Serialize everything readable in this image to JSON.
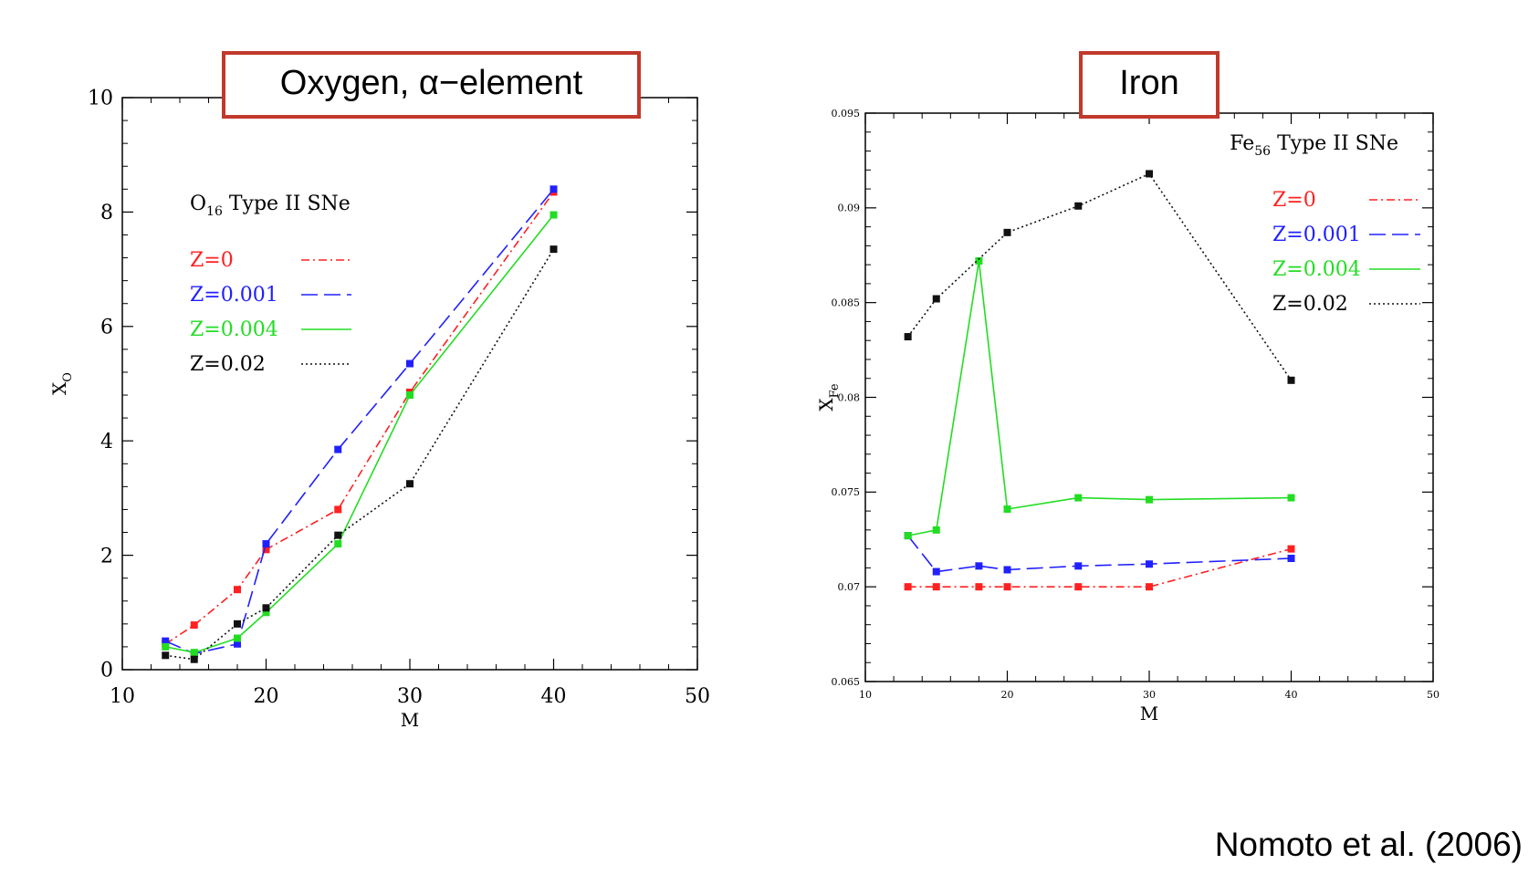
{
  "panels": {
    "left_title": "Oxygen, α−element",
    "right_title": "Iron"
  },
  "credit": "Nomoto et al. (2006)",
  "chart_data": [
    {
      "type": "line",
      "x": [
        13,
        15,
        18,
        20,
        25,
        30,
        40
      ],
      "xlabel": "M",
      "ylabel": "X",
      "ylabel_sub": "O",
      "xlim": [
        10,
        50
      ],
      "ylim": [
        0,
        10
      ],
      "xticks": [
        10,
        20,
        30,
        40,
        50
      ],
      "yticks": [
        0,
        2,
        4,
        6,
        8,
        10
      ],
      "legend_title": "O",
      "legend_title_sub": "16",
      "legend_title_rest": " Type II SNe",
      "legend_position": "top-left",
      "series": [
        {
          "name": "Z=0",
          "color": "#ff2020",
          "dash": "dashdot",
          "values": [
            0.45,
            0.78,
            1.4,
            2.1,
            2.8,
            4.85,
            8.35
          ]
        },
        {
          "name": "Z=0.001",
          "color": "#2020ff",
          "dash": "longdash",
          "values": [
            0.5,
            0.28,
            0.45,
            2.2,
            3.85,
            5.35,
            8.4
          ]
        },
        {
          "name": "Z=0.004",
          "color": "#22dd22",
          "dash": "solid",
          "values": [
            0.4,
            0.3,
            0.55,
            1.0,
            2.2,
            4.8,
            7.95
          ]
        },
        {
          "name": "Z=0.02",
          "color": "#111111",
          "dash": "dotted",
          "values": [
            0.25,
            0.18,
            0.8,
            1.08,
            2.35,
            3.25,
            7.35
          ]
        }
      ]
    },
    {
      "type": "line",
      "x": [
        13,
        15,
        18,
        20,
        25,
        30,
        40
      ],
      "xlabel": "M",
      "ylabel": "X",
      "ylabel_sub": "Fe",
      "xlim": [
        10,
        50
      ],
      "ylim": [
        0.065,
        0.095
      ],
      "xticks": [
        10,
        20,
        30,
        40,
        50
      ],
      "yticks": [
        0.065,
        0.07,
        0.075,
        0.08,
        0.085,
        0.09,
        0.095
      ],
      "ytick_labels": [
        "0.065",
        "0.07",
        "0.075",
        "0.08",
        "0.085",
        "0.09",
        "0.095"
      ],
      "legend_title": "Fe",
      "legend_title_sub": "56",
      "legend_title_rest": " Type II SNe",
      "legend_position": "top-right",
      "series": [
        {
          "name": "Z=0",
          "color": "#ff2020",
          "dash": "dashdot",
          "values": [
            0.07,
            0.07,
            0.07,
            0.07,
            0.07,
            0.07,
            0.072
          ]
        },
        {
          "name": "Z=0.001",
          "color": "#2020ff",
          "dash": "longdash",
          "values": [
            0.0727,
            0.0708,
            0.0711,
            0.0709,
            0.0711,
            0.0712,
            0.0715
          ]
        },
        {
          "name": "Z=0.004",
          "color": "#22dd22",
          "dash": "solid",
          "values": [
            0.0727,
            0.073,
            0.0872,
            0.0741,
            0.0747,
            0.0746,
            0.0747
          ]
        },
        {
          "name": "Z=0.02",
          "color": "#111111",
          "dash": "dotted",
          "values": [
            0.0832,
            0.0852,
            null,
            0.0887,
            0.0901,
            0.0918,
            0.0809
          ]
        }
      ]
    }
  ]
}
